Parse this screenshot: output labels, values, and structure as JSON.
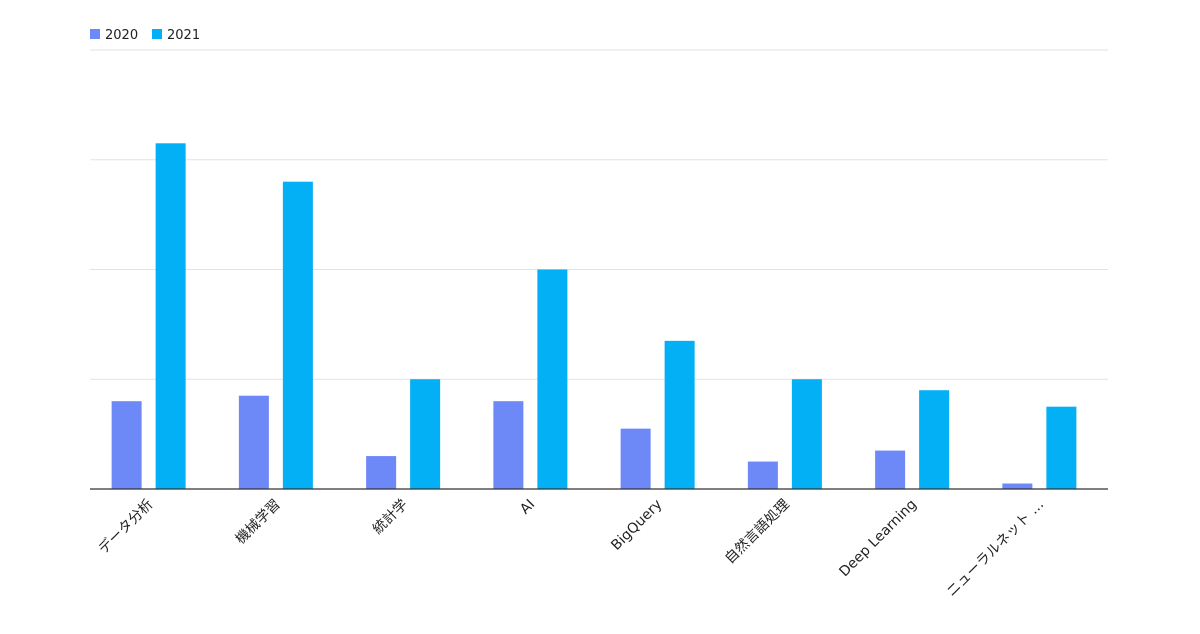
{
  "chart_data": {
    "type": "bar",
    "title": "",
    "xlabel": "",
    "ylabel": "",
    "ylim": [
      0,
      4
    ],
    "grid": true,
    "y_tick_labels_shown": false,
    "legend_position": "top-left",
    "categories": [
      "データ分析",
      "機械学習",
      "統計学",
      "AI",
      "BigQuery",
      "自然言語処理",
      "Deep Learning",
      "ニューラルネット …"
    ],
    "series": [
      {
        "name": "2020",
        "color": "#6d88f7",
        "values": [
          0.8,
          0.85,
          0.3,
          0.8,
          0.55,
          0.25,
          0.35,
          0.05
        ]
      },
      {
        "name": "2021",
        "color": "#03aff5",
        "values": [
          3.15,
          2.8,
          1.0,
          2.0,
          1.35,
          1.0,
          0.9,
          0.75
        ]
      }
    ]
  }
}
